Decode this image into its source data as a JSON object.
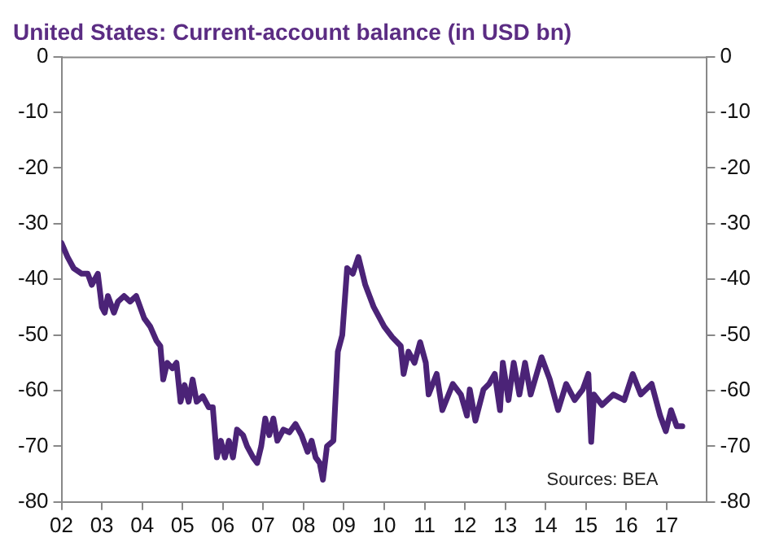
{
  "chart_data": {
    "type": "line",
    "title": "United States: Current-account balance (in USD bn)",
    "annotations": [
      "Sources: BEA"
    ],
    "x": [
      2002.0,
      2002.15,
      2002.3,
      2002.5,
      2002.65,
      2002.75,
      2002.9,
      2003.0,
      2003.07,
      2003.15,
      2003.3,
      2003.4,
      2003.55,
      2003.7,
      2003.85,
      2003.95,
      2004.05,
      2004.2,
      2004.35,
      2004.45,
      2004.52,
      2004.62,
      2004.75,
      2004.85,
      2004.95,
      2005.05,
      2005.15,
      2005.25,
      2005.35,
      2005.5,
      2005.65,
      2005.75,
      2005.85,
      2005.95,
      2006.05,
      2006.15,
      2006.25,
      2006.35,
      2006.5,
      2006.6,
      2006.75,
      2006.85,
      2006.95,
      2007.05,
      2007.15,
      2007.25,
      2007.35,
      2007.5,
      2007.65,
      2007.8,
      2007.95,
      2008.1,
      2008.2,
      2008.3,
      2008.4,
      2008.48,
      2008.58,
      2008.74,
      2008.85,
      2008.96,
      2009.08,
      2009.22,
      2009.36,
      2009.53,
      2009.74,
      2010.0,
      2010.2,
      2010.41,
      2010.48,
      2010.6,
      2010.75,
      2010.89,
      2011.03,
      2011.1,
      2011.3,
      2011.44,
      2011.7,
      2011.9,
      2012.05,
      2012.12,
      2012.26,
      2012.46,
      2012.6,
      2012.74,
      2012.87,
      2012.94,
      2013.08,
      2013.21,
      2013.35,
      2013.49,
      2013.63,
      2013.9,
      2014.1,
      2014.31,
      2014.51,
      2014.72,
      2014.92,
      2015.06,
      2015.13,
      2015.2,
      2015.4,
      2015.68,
      2015.95,
      2016.16,
      2016.36,
      2016.63,
      2016.84,
      2016.98,
      2017.11,
      2017.25,
      2017.39
    ],
    "series": [
      {
        "color": "#4b2377",
        "values": [
          -33.5,
          -36,
          -38,
          -39,
          -39,
          -41,
          -39,
          -45,
          -46,
          -43,
          -46,
          -44,
          -43,
          -44,
          -43,
          -45,
          -47,
          -48.5,
          -51,
          -52,
          -58,
          -55,
          -56,
          -55,
          -62,
          -59,
          -62,
          -58,
          -62,
          -61,
          -63,
          -63,
          -72,
          -69,
          -72,
          -69,
          -72,
          -67,
          -68,
          -70,
          -72,
          -73,
          -70,
          -65,
          -68,
          -65,
          -69,
          -67,
          -67.5,
          -66,
          -68,
          -71,
          -69,
          -72,
          -73,
          -76,
          -70,
          -69,
          -53,
          -50,
          -38,
          -39,
          -36,
          -41,
          -45,
          -48.5,
          -50.4,
          -52,
          -57,
          -53,
          -55,
          -51.3,
          -55,
          -60.7,
          -57,
          -63.5,
          -58.8,
          -60.7,
          -64.5,
          -59.8,
          -65.4,
          -59.8,
          -58.8,
          -57,
          -63.5,
          -55,
          -61.7,
          -55,
          -60.7,
          -55,
          -60.7,
          -54,
          -57.9,
          -63.5,
          -58.8,
          -61.7,
          -59.8,
          -57,
          -69.2,
          -60.7,
          -62.6,
          -60.7,
          -61.7,
          -57,
          -60.7,
          -58.8,
          -64.5,
          -67.3,
          -63.5,
          -66.4,
          -66.4
        ]
      }
    ],
    "xlim": [
      2002,
      2018
    ],
    "xticks": [
      {
        "value": 2002,
        "label": "02"
      },
      {
        "value": 2003,
        "label": "03"
      },
      {
        "value": 2004,
        "label": "04"
      },
      {
        "value": 2005,
        "label": "05"
      },
      {
        "value": 2006,
        "label": "06"
      },
      {
        "value": 2007,
        "label": "07"
      },
      {
        "value": 2008,
        "label": "08"
      },
      {
        "value": 2009,
        "label": "09"
      },
      {
        "value": 2010,
        "label": "10"
      },
      {
        "value": 2011,
        "label": "11"
      },
      {
        "value": 2012,
        "label": "12"
      },
      {
        "value": 2013,
        "label": "13"
      },
      {
        "value": 2014,
        "label": "14"
      },
      {
        "value": 2015,
        "label": "15"
      },
      {
        "value": 2016,
        "label": "16"
      },
      {
        "value": 2017,
        "label": "17"
      }
    ],
    "ylim": [
      -80,
      0
    ],
    "yticks": [
      -80,
      -70,
      -60,
      -50,
      -40,
      -30,
      -20,
      -10,
      0
    ],
    "y2lim": [
      -80,
      0
    ],
    "y2ticks": [
      -80,
      -70,
      -60,
      -50,
      -40,
      -30,
      -20,
      -10,
      0
    ],
    "grid": false,
    "legend": false,
    "marker": "none",
    "line_style": "solid"
  }
}
